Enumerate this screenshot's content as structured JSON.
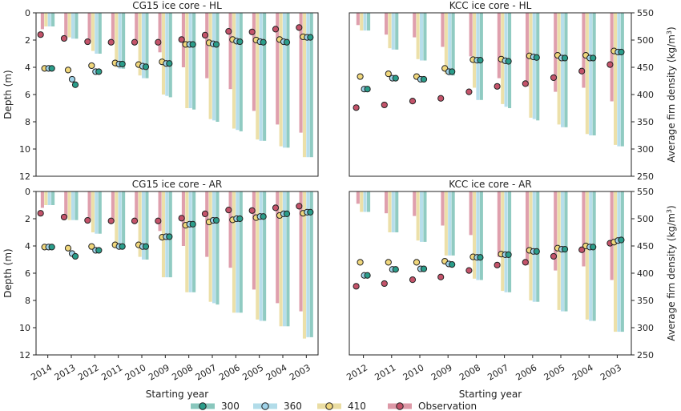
{
  "colors": {
    "300": "#6bb9ad",
    "360": "#9fd3e4",
    "410": "#e5d58c",
    "Observation": "#d47f91",
    "dot_300": "#2a9d8a",
    "dot_360": "#9fd3e9",
    "dot_410": "#f0d77c",
    "dot_obs": "#c4536a"
  },
  "labels": {
    "depth_axis": "Depth (m)",
    "density_axis": "Average firn density (kg/m",
    "density_unit_sup": "3",
    "density_axis_close": ")",
    "starting_year": "Starting year"
  },
  "legend": [
    {
      "name": "300",
      "key": "300"
    },
    {
      "name": "360",
      "key": "360"
    },
    {
      "name": "410",
      "key": "410"
    },
    {
      "name": "Observation",
      "key": "Observation"
    }
  ],
  "chart_data": [
    {
      "type": "bar",
      "title": "CG15 ice core - HL",
      "categories": [
        "2014",
        "2013",
        "2012",
        "2011",
        "2010",
        "2009",
        "2008",
        "2007",
        "2006",
        "2005",
        "2004",
        "2003"
      ],
      "ylim_depth": [
        12,
        0
      ],
      "ylim_density": [
        250,
        550
      ],
      "yticks_depth": [
        0,
        2,
        4,
        6,
        8,
        10,
        12
      ],
      "series": [
        {
          "name": "Observation",
          "values": [
            1.2,
            1.9,
            2.1,
            2.2,
            2.2,
            2.9,
            4.0,
            4.8,
            5.6,
            7.2,
            8.2,
            8.8
          ]
        },
        {
          "name": "410",
          "values": [
            1.0,
            1.8,
            2.8,
            4.0,
            4.6,
            6.0,
            7.0,
            7.8,
            8.5,
            9.3,
            9.8,
            10.6
          ]
        },
        {
          "name": "360",
          "values": [
            1.0,
            1.9,
            3.0,
            4.1,
            4.8,
            6.1,
            7.0,
            7.9,
            8.6,
            9.4,
            9.9,
            10.6
          ]
        },
        {
          "name": "300",
          "values": [
            1.0,
            1.9,
            3.0,
            4.1,
            4.8,
            6.2,
            7.1,
            8.0,
            8.7,
            9.4,
            9.9,
            10.6
          ]
        }
      ],
      "markers": [
        {
          "name": "Observation",
          "density": [
            510,
            503,
            497,
            496,
            496,
            496,
            501,
            509,
            516,
            515,
            520,
            523
          ]
        },
        {
          "name": "410",
          "density": [
            448,
            445,
            453,
            458,
            455,
            460,
            492,
            495,
            501,
            500,
            501,
            506
          ]
        },
        {
          "name": "360",
          "density": [
            448,
            428,
            442,
            456,
            452,
            457,
            492,
            493,
            498,
            497,
            497,
            505
          ]
        },
        {
          "name": "300",
          "density": [
            448,
            418,
            442,
            456,
            451,
            457,
            492,
            492,
            497,
            496,
            496,
            505
          ]
        }
      ]
    },
    {
      "type": "bar",
      "title": "KCC ice core - HL",
      "categories": [
        "2012",
        "2011",
        "2010",
        "2009",
        "2008",
        "2007",
        "2006",
        "2005",
        "2004",
        "2003"
      ],
      "ylim_depth": [
        12,
        0
      ],
      "ylim_density": [
        250,
        550
      ],
      "yticks_density": [
        250,
        300,
        350,
        400,
        450,
        500,
        550
      ],
      "series": [
        {
          "name": "Observation",
          "values": [
            0.9,
            1.6,
            1.8,
            2.5,
            3.2,
            4.8,
            5.4,
            5.8,
            5.5,
            6.5
          ]
        },
        {
          "name": "410",
          "values": [
            1.3,
            2.6,
            3.4,
            4.5,
            5.5,
            6.7,
            7.7,
            8.2,
            8.9,
            9.7
          ]
        },
        {
          "name": "360",
          "values": [
            1.3,
            2.7,
            3.5,
            4.6,
            6.4,
            6.9,
            7.8,
            8.4,
            9.0,
            9.8
          ]
        },
        {
          "name": "300",
          "values": [
            1.3,
            2.7,
            3.5,
            4.6,
            6.4,
            7.0,
            7.9,
            8.4,
            9.0,
            9.8
          ]
        }
      ],
      "markers": [
        {
          "name": "Observation",
          "density": [
            376,
            381,
            388,
            393,
            405,
            415,
            420,
            431,
            443,
            455
          ]
        },
        {
          "name": "410",
          "density": [
            433,
            438,
            433,
            448,
            464,
            465,
            471,
            472,
            472,
            480
          ]
        },
        {
          "name": "360",
          "density": [
            410,
            430,
            428,
            442,
            463,
            462,
            469,
            467,
            467,
            478
          ]
        },
        {
          "name": "300",
          "density": [
            410,
            430,
            428,
            442,
            463,
            461,
            468,
            467,
            467,
            478
          ]
        }
      ]
    },
    {
      "type": "bar",
      "title": "CG15 ice core - AR",
      "categories": [
        "2014",
        "2013",
        "2012",
        "2011",
        "2010",
        "2009",
        "2008",
        "2007",
        "2006",
        "2005",
        "2004",
        "2003"
      ],
      "ylim_depth": [
        12,
        0
      ],
      "ylim_density": [
        250,
        550
      ],
      "yticks_depth": [
        0,
        2,
        4,
        6,
        8,
        10,
        12
      ],
      "series": [
        {
          "name": "Observation",
          "values": [
            1.2,
            1.9,
            2.1,
            2.2,
            2.2,
            2.9,
            4.0,
            4.8,
            5.6,
            7.2,
            8.2,
            8.8
          ]
        },
        {
          "name": "410",
          "values": [
            1.0,
            2.1,
            3.0,
            3.9,
            4.8,
            6.3,
            7.4,
            8.1,
            8.9,
            9.4,
            9.9,
            10.8
          ]
        },
        {
          "name": "360",
          "values": [
            1.0,
            2.1,
            3.1,
            4.0,
            5.0,
            6.3,
            7.4,
            8.2,
            8.9,
            9.5,
            9.9,
            10.7
          ]
        },
        {
          "name": "300",
          "values": [
            1.0,
            2.1,
            3.1,
            4.0,
            5.0,
            6.3,
            7.4,
            8.3,
            8.9,
            9.5,
            9.9,
            10.7
          ]
        }
      ],
      "markers": [
        {
          "name": "Observation",
          "density": [
            510,
            503,
            497,
            496,
            496,
            496,
            501,
            509,
            516,
            515,
            520,
            523
          ]
        },
        {
          "name": "410",
          "density": [
            448,
            446,
            449,
            452,
            452,
            466,
            488,
            494,
            498,
            502,
            506,
            510
          ]
        },
        {
          "name": "360",
          "density": [
            448,
            436,
            442,
            449,
            449,
            467,
            490,
            497,
            500,
            504,
            509,
            512
          ]
        },
        {
          "name": "300",
          "density": [
            448,
            431,
            442,
            449,
            449,
            467,
            490,
            497,
            500,
            504,
            509,
            512
          ]
        }
      ]
    },
    {
      "type": "bar",
      "title": "KCC ice core - AR",
      "categories": [
        "2012",
        "2011",
        "2010",
        "2009",
        "2008",
        "2007",
        "2006",
        "2005",
        "2004",
        "2003"
      ],
      "ylim_depth": [
        12,
        0
      ],
      "ylim_density": [
        250,
        550
      ],
      "yticks_density": [
        250,
        300,
        350,
        400,
        450,
        500,
        550
      ],
      "series": [
        {
          "name": "Observation",
          "values": [
            0.9,
            1.6,
            1.8,
            2.5,
            3.2,
            4.8,
            5.4,
            5.8,
            5.5,
            6.5
          ]
        },
        {
          "name": "410",
          "values": [
            1.5,
            3.0,
            3.6,
            4.7,
            6.4,
            7.3,
            8.0,
            8.7,
            9.4,
            10.3
          ]
        },
        {
          "name": "360",
          "values": [
            1.5,
            3.0,
            3.7,
            4.7,
            6.5,
            7.4,
            8.1,
            8.8,
            9.5,
            10.3
          ]
        },
        {
          "name": "300",
          "values": [
            1.5,
            3.0,
            3.7,
            4.7,
            6.5,
            7.4,
            8.1,
            8.8,
            9.5,
            10.3
          ]
        }
      ],
      "markers": [
        {
          "name": "Observation",
          "density": [
            376,
            381,
            388,
            393,
            405,
            415,
            420,
            431,
            443,
            455
          ]
        },
        {
          "name": "410",
          "density": [
            420,
            420,
            420,
            422,
            430,
            435,
            442,
            446,
            450,
            457
          ]
        },
        {
          "name": "360",
          "density": [
            396,
            407,
            408,
            417,
            429,
            434,
            440,
            444,
            448,
            460
          ]
        },
        {
          "name": "300",
          "density": [
            396,
            407,
            408,
            416,
            429,
            434,
            440,
            444,
            448,
            461
          ]
        }
      ]
    }
  ]
}
